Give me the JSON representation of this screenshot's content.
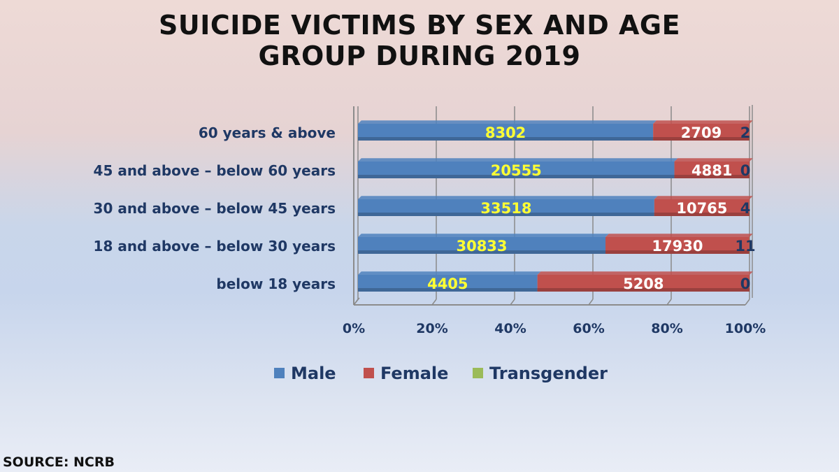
{
  "chart_data": {
    "type": "bar",
    "orientation": "horizontal",
    "stacked": "percent",
    "title": [
      "SUICIDE VICTIMS BY SEX AND AGE",
      "GROUP DURING 2019"
    ],
    "categories": [
      "60 years & above",
      "45 and above – below 60 years",
      "30 and above – below 45 years",
      "18 and above – below 30 years",
      "below 18 years"
    ],
    "series": [
      {
        "name": "Male",
        "color": "#4f81bd",
        "label_color": "#ffff33",
        "values": [
          8302,
          20555,
          33518,
          30833,
          4405
        ]
      },
      {
        "name": "Female",
        "color": "#c0504d",
        "label_color": "#ffffff",
        "values": [
          2709,
          4881,
          10765,
          17930,
          5208
        ]
      },
      {
        "name": "Transgender",
        "color": "#9bbb59",
        "label_color": "#1f3864",
        "values": [
          2,
          0,
          4,
          11,
          0
        ]
      }
    ],
    "x_ticks": [
      "0%",
      "20%",
      "40%",
      "60%",
      "80%",
      "100%"
    ],
    "xlim": [
      0,
      100
    ],
    "grid": true,
    "legend_position": "bottom"
  },
  "source": "SOURCE: NCRB"
}
